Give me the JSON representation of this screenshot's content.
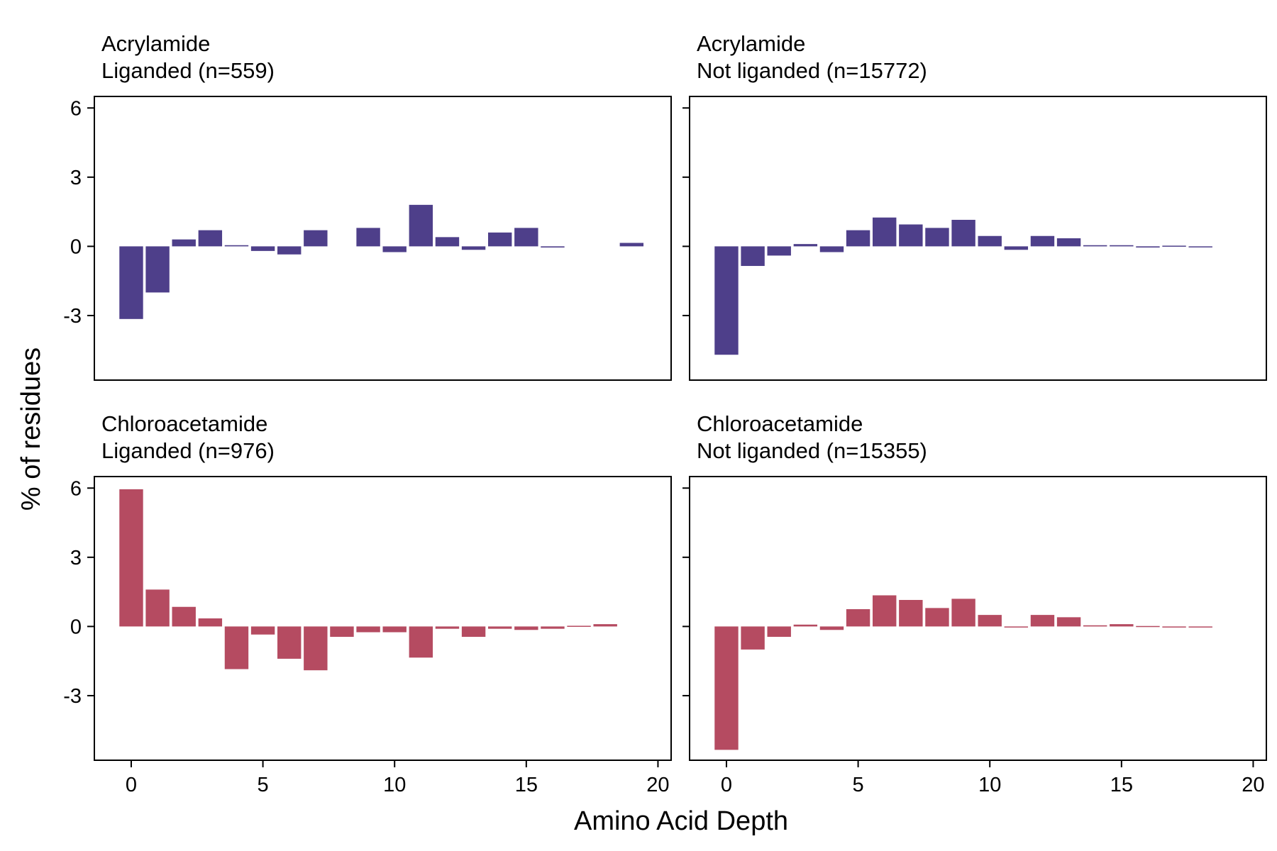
{
  "figure": {
    "xlabel": "Amino Acid Depth",
    "ylabel": "% of residues",
    "colors": {
      "acrylamide": "#4e3f8a",
      "chloroacetamide": "#b54b61"
    }
  },
  "chart_data": [
    {
      "type": "bar",
      "title_line1": "Acrylamide",
      "title_line2": "Liganded (n=559)",
      "color_key": "acrylamide",
      "x": [
        0,
        1,
        2,
        3,
        4,
        5,
        6,
        7,
        8,
        9,
        10,
        11,
        12,
        13,
        14,
        15,
        16,
        17,
        18,
        19
      ],
      "values": [
        -3.15,
        -2.0,
        0.3,
        0.7,
        0.05,
        -0.2,
        -0.35,
        0.7,
        0.0,
        0.8,
        -0.25,
        1.8,
        0.4,
        -0.15,
        0.6,
        0.8,
        -0.05,
        0,
        0,
        0.15
      ],
      "xlim": [
        -1.4,
        20.5
      ],
      "ylim": [
        -5.8,
        6.5
      ],
      "xticks": [
        0,
        5,
        10,
        15,
        20
      ],
      "yticks": [
        -3,
        0,
        3,
        6
      ],
      "show_xticklabels": false,
      "show_yticklabels": true
    },
    {
      "type": "bar",
      "title_line1": "Acrylamide",
      "title_line2": "Not liganded (n=15772)",
      "color_key": "acrylamide",
      "x": [
        0,
        1,
        2,
        3,
        4,
        5,
        6,
        7,
        8,
        9,
        10,
        11,
        12,
        13,
        14,
        15,
        16,
        17,
        18
      ],
      "values": [
        -4.7,
        -0.85,
        -0.4,
        0.1,
        -0.25,
        0.7,
        1.25,
        0.95,
        0.8,
        1.15,
        0.45,
        -0.15,
        0.45,
        0.35,
        0.05,
        0.05,
        -0.05,
        0.03,
        -0.03
      ],
      "xlim": [
        -1.4,
        20.5
      ],
      "ylim": [
        -5.8,
        6.5
      ],
      "xticks": [
        0,
        5,
        10,
        15,
        20
      ],
      "yticks": [
        -3,
        0,
        3,
        6
      ],
      "show_xticklabels": false,
      "show_yticklabels": false
    },
    {
      "type": "bar",
      "title_line1": "Chloroacetamide",
      "title_line2": "Liganded (n=976)",
      "color_key": "chloroacetamide",
      "x": [
        0,
        1,
        2,
        3,
        4,
        5,
        6,
        7,
        8,
        9,
        10,
        11,
        12,
        13,
        14,
        15,
        16,
        17,
        18
      ],
      "values": [
        5.95,
        1.6,
        0.85,
        0.35,
        -1.85,
        -0.35,
        -1.4,
        -1.9,
        -0.45,
        -0.25,
        -0.25,
        -1.35,
        -0.1,
        -0.45,
        -0.1,
        -0.15,
        -0.1,
        0.03,
        0.1
      ],
      "xlim": [
        -1.4,
        20.5
      ],
      "ylim": [
        -5.8,
        6.5
      ],
      "xticks": [
        0,
        5,
        10,
        15,
        20
      ],
      "yticks": [
        -3,
        0,
        3,
        6
      ],
      "show_xticklabels": true,
      "show_yticklabels": true
    },
    {
      "type": "bar",
      "title_line1": "Chloroacetamide",
      "title_line2": "Not liganded (n=15355)",
      "color_key": "chloroacetamide",
      "x": [
        0,
        1,
        2,
        3,
        4,
        5,
        6,
        7,
        8,
        9,
        10,
        11,
        12,
        13,
        14,
        15,
        16,
        17,
        18
      ],
      "values": [
        -5.35,
        -1.0,
        -0.45,
        0.08,
        -0.15,
        0.75,
        1.35,
        1.15,
        0.8,
        1.2,
        0.5,
        -0.03,
        0.5,
        0.4,
        0.05,
        0.1,
        0.02,
        -0.03,
        -0.02
      ],
      "xlim": [
        -1.4,
        20.5
      ],
      "ylim": [
        -5.8,
        6.5
      ],
      "xticks": [
        0,
        5,
        10,
        15,
        20
      ],
      "yticks": [
        -3,
        0,
        3,
        6
      ],
      "show_xticklabels": true,
      "show_yticklabels": false
    }
  ]
}
